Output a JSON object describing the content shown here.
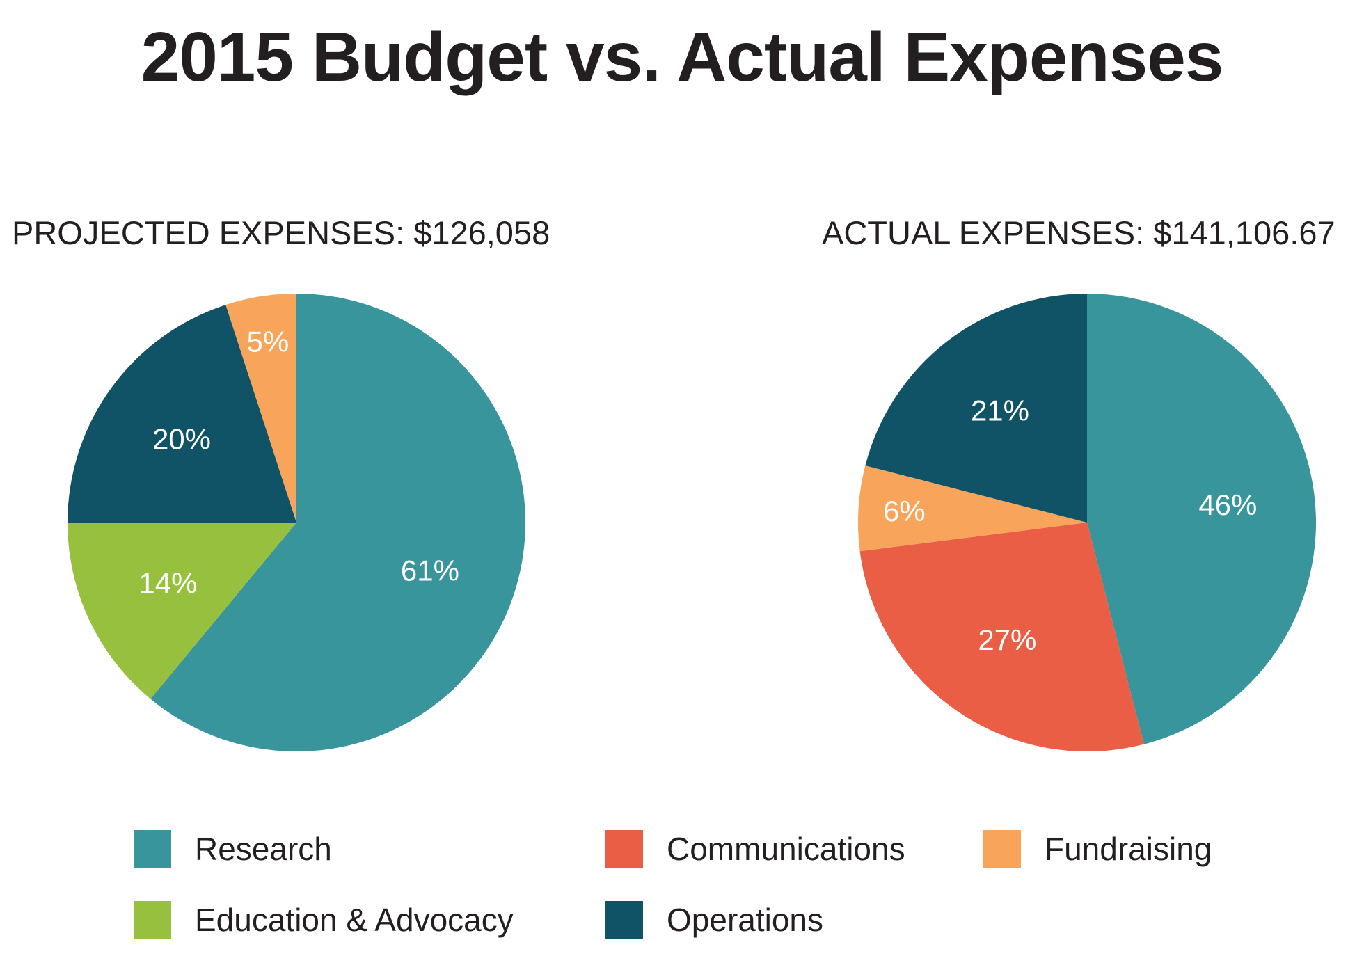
{
  "title": "2015 Budget vs. Actual Expenses",
  "colors": {
    "research": "#38959c",
    "communications": "#ea5e45",
    "fundraising": "#f8a55b",
    "education_advocacy": "#96c03d",
    "operations": "#115366"
  },
  "legend": [
    {
      "key": "research",
      "label": "Research"
    },
    {
      "key": "communications",
      "label": "Communications"
    },
    {
      "key": "fundraising",
      "label": "Fundraising"
    },
    {
      "key": "education_advocacy",
      "label": "Education & Advocacy"
    },
    {
      "key": "operations",
      "label": "Operations"
    }
  ],
  "chart_data": [
    {
      "type": "pie",
      "title": "PROJECTED EXPENSES: $126,058",
      "slices": [
        {
          "key": "research",
          "label": "61%",
          "value": 61
        },
        {
          "key": "education_advocacy",
          "label": "14%",
          "value": 14
        },
        {
          "key": "operations",
          "label": "20%",
          "value": 20
        },
        {
          "key": "fundraising",
          "label": "5%",
          "value": 5
        }
      ]
    },
    {
      "type": "pie",
      "title": "ACTUAL EXPENSES: $141,106.67",
      "slices": [
        {
          "key": "research",
          "label": "46%",
          "value": 46
        },
        {
          "key": "communications",
          "label": "27%",
          "value": 27
        },
        {
          "key": "fundraising",
          "label": "6%",
          "value": 6
        },
        {
          "key": "operations",
          "label": "21%",
          "value": 21
        }
      ]
    }
  ]
}
